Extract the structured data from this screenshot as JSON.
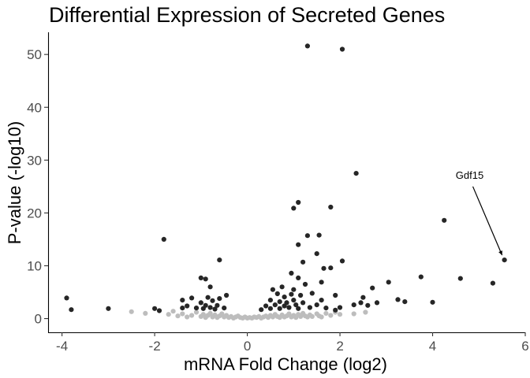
{
  "chart_data": {
    "type": "scatter",
    "title": "Differential Expression of Secreted Genes",
    "xlabel": "mRNA Fold Change (log2)",
    "ylabel": "P-value (-log10)",
    "xlim": [
      -4.3,
      6.0
    ],
    "ylim": [
      -2.6,
      54.2
    ],
    "xticks": [
      -4,
      -2,
      0,
      2,
      4,
      6
    ],
    "yticks": [
      0,
      10,
      20,
      30,
      40,
      50
    ],
    "xtick_labels": [
      "-4",
      "-2",
      "0",
      "2",
      "4",
      "6"
    ],
    "ytick_labels": [
      "0",
      "10",
      "20",
      "30",
      "40",
      "50"
    ],
    "grid": false,
    "legend": "none",
    "colors": {
      "significant": "#262626",
      "not_significant": "#bdbdbd"
    },
    "annotations": [
      {
        "text": "Gdf15",
        "x": 4.8,
        "y": 26.5,
        "target_x": 5.5,
        "target_y": 12.0
      }
    ],
    "series": [
      {
        "points": [
          [
            -2.5,
            1.3
          ],
          [
            -2.2,
            1.0
          ],
          [
            -1.7,
            0.8
          ],
          [
            -1.6,
            1.4
          ],
          [
            -1.5,
            0.5
          ],
          [
            -1.4,
            0.9
          ],
          [
            -1.3,
            0.3
          ],
          [
            -1.2,
            0.6
          ],
          [
            -1.1,
            1.2
          ],
          [
            -1.0,
            0.4
          ],
          [
            -0.95,
            0.8
          ],
          [
            -0.9,
            0.2
          ],
          [
            -0.85,
            0.6
          ],
          [
            -0.8,
            1.0
          ],
          [
            -0.75,
            0.3
          ],
          [
            -0.7,
            0.7
          ],
          [
            -0.65,
            0.2
          ],
          [
            -0.6,
            0.5
          ],
          [
            -0.55,
            0.9
          ],
          [
            -0.5,
            0.3
          ],
          [
            -0.45,
            0.6
          ],
          [
            -0.4,
            0.2
          ],
          [
            -0.35,
            0.4
          ],
          [
            -0.3,
            0.1
          ],
          [
            -0.25,
            0.3
          ],
          [
            -0.2,
            0.5
          ],
          [
            -0.15,
            0.2
          ],
          [
            -0.1,
            0.1
          ],
          [
            -0.05,
            0.3
          ],
          [
            0.0,
            0.1
          ],
          [
            0.05,
            0.2
          ],
          [
            0.1,
            0.1
          ],
          [
            0.15,
            0.3
          ],
          [
            0.2,
            0.2
          ],
          [
            0.25,
            0.4
          ],
          [
            0.3,
            0.1
          ],
          [
            0.35,
            0.3
          ],
          [
            0.4,
            0.5
          ],
          [
            0.45,
            0.2
          ],
          [
            0.5,
            0.6
          ],
          [
            0.55,
            0.3
          ],
          [
            0.6,
            0.8
          ],
          [
            0.65,
            0.4
          ],
          [
            0.7,
            0.2
          ],
          [
            0.75,
            0.7
          ],
          [
            0.8,
            0.3
          ],
          [
            0.85,
            0.5
          ],
          [
            0.9,
            0.9
          ],
          [
            0.95,
            0.3
          ],
          [
            1.0,
            0.6
          ],
          [
            1.05,
            0.2
          ],
          [
            1.1,
            0.8
          ],
          [
            1.15,
            0.4
          ],
          [
            1.2,
            1.0
          ],
          [
            1.25,
            0.5
          ],
          [
            1.3,
            0.3
          ],
          [
            1.35,
            0.7
          ],
          [
            1.4,
            0.4
          ],
          [
            1.5,
            0.9
          ],
          [
            1.55,
            0.5
          ],
          [
            1.6,
            0.3
          ],
          [
            1.7,
            1.0
          ],
          [
            1.8,
            0.6
          ],
          [
            1.9,
            1.2
          ],
          [
            2.0,
            0.8
          ],
          [
            2.3,
            0.9
          ],
          [
            2.55,
            1.2
          ]
        ]
      },
      {
        "points": [
          [
            -3.9,
            3.9
          ],
          [
            -3.8,
            1.7
          ],
          [
            -3.0,
            1.9
          ],
          [
            -2.0,
            1.9
          ],
          [
            -1.9,
            1.5
          ],
          [
            -1.8,
            15.0
          ],
          [
            -1.4,
            2.0
          ],
          [
            -1.4,
            3.5
          ],
          [
            -1.3,
            2.4
          ],
          [
            -1.2,
            3.9
          ],
          [
            -1.1,
            2.0
          ],
          [
            -1.0,
            3.0
          ],
          [
            -1.0,
            7.7
          ],
          [
            -0.95,
            1.9
          ],
          [
            -0.9,
            2.5
          ],
          [
            -0.9,
            7.5
          ],
          [
            -0.85,
            4.0
          ],
          [
            -0.8,
            6.0
          ],
          [
            -0.8,
            2.1
          ],
          [
            -0.75,
            3.4
          ],
          [
            -0.7,
            1.8
          ],
          [
            -0.65,
            2.5
          ],
          [
            -0.6,
            11.1
          ],
          [
            -0.6,
            3.8
          ],
          [
            -0.5,
            2.0
          ],
          [
            -0.45,
            4.4
          ],
          [
            0.3,
            1.7
          ],
          [
            0.4,
            2.4
          ],
          [
            0.5,
            3.5
          ],
          [
            0.5,
            1.9
          ],
          [
            0.55,
            5.5
          ],
          [
            0.6,
            2.6
          ],
          [
            0.65,
            4.7
          ],
          [
            0.7,
            3.2
          ],
          [
            0.7,
            1.9
          ],
          [
            0.75,
            6.0
          ],
          [
            0.8,
            2.4
          ],
          [
            0.8,
            4.1
          ],
          [
            0.85,
            3.0
          ],
          [
            0.9,
            2.1
          ],
          [
            0.95,
            4.6
          ],
          [
            0.95,
            8.6
          ],
          [
            1.0,
            3.5
          ],
          [
            1.0,
            5.5
          ],
          [
            1.0,
            20.9
          ],
          [
            1.05,
            2.6
          ],
          [
            1.1,
            1.9
          ],
          [
            1.1,
            14.0
          ],
          [
            1.1,
            22.0
          ],
          [
            1.1,
            7.7
          ],
          [
            1.15,
            4.4
          ],
          [
            1.2,
            10.7
          ],
          [
            1.2,
            3.0
          ],
          [
            1.25,
            6.5
          ],
          [
            1.3,
            15.7
          ],
          [
            1.3,
            51.6
          ],
          [
            1.35,
            2.1
          ],
          [
            1.4,
            4.8
          ],
          [
            1.5,
            12.3
          ],
          [
            1.5,
            2.6
          ],
          [
            1.55,
            15.8
          ],
          [
            1.6,
            3.5
          ],
          [
            1.6,
            6.9
          ],
          [
            1.65,
            9.5
          ],
          [
            1.7,
            2.0
          ],
          [
            1.8,
            21.1
          ],
          [
            1.8,
            9.6
          ],
          [
            1.9,
            1.6
          ],
          [
            1.9,
            4.4
          ],
          [
            2.0,
            2.1
          ],
          [
            2.05,
            51.0
          ],
          [
            2.05,
            10.9
          ],
          [
            2.3,
            2.6
          ],
          [
            2.35,
            27.5
          ],
          [
            2.45,
            3.0
          ],
          [
            2.5,
            4.0
          ],
          [
            2.6,
            2.5
          ],
          [
            2.7,
            5.8
          ],
          [
            2.8,
            3.0
          ],
          [
            3.05,
            6.9
          ],
          [
            3.25,
            3.6
          ],
          [
            3.4,
            3.2
          ],
          [
            3.75,
            7.9
          ],
          [
            4.0,
            3.1
          ],
          [
            4.25,
            18.6
          ],
          [
            4.6,
            7.6
          ],
          [
            5.3,
            6.7
          ],
          [
            5.55,
            11.1
          ]
        ]
      }
    ]
  }
}
